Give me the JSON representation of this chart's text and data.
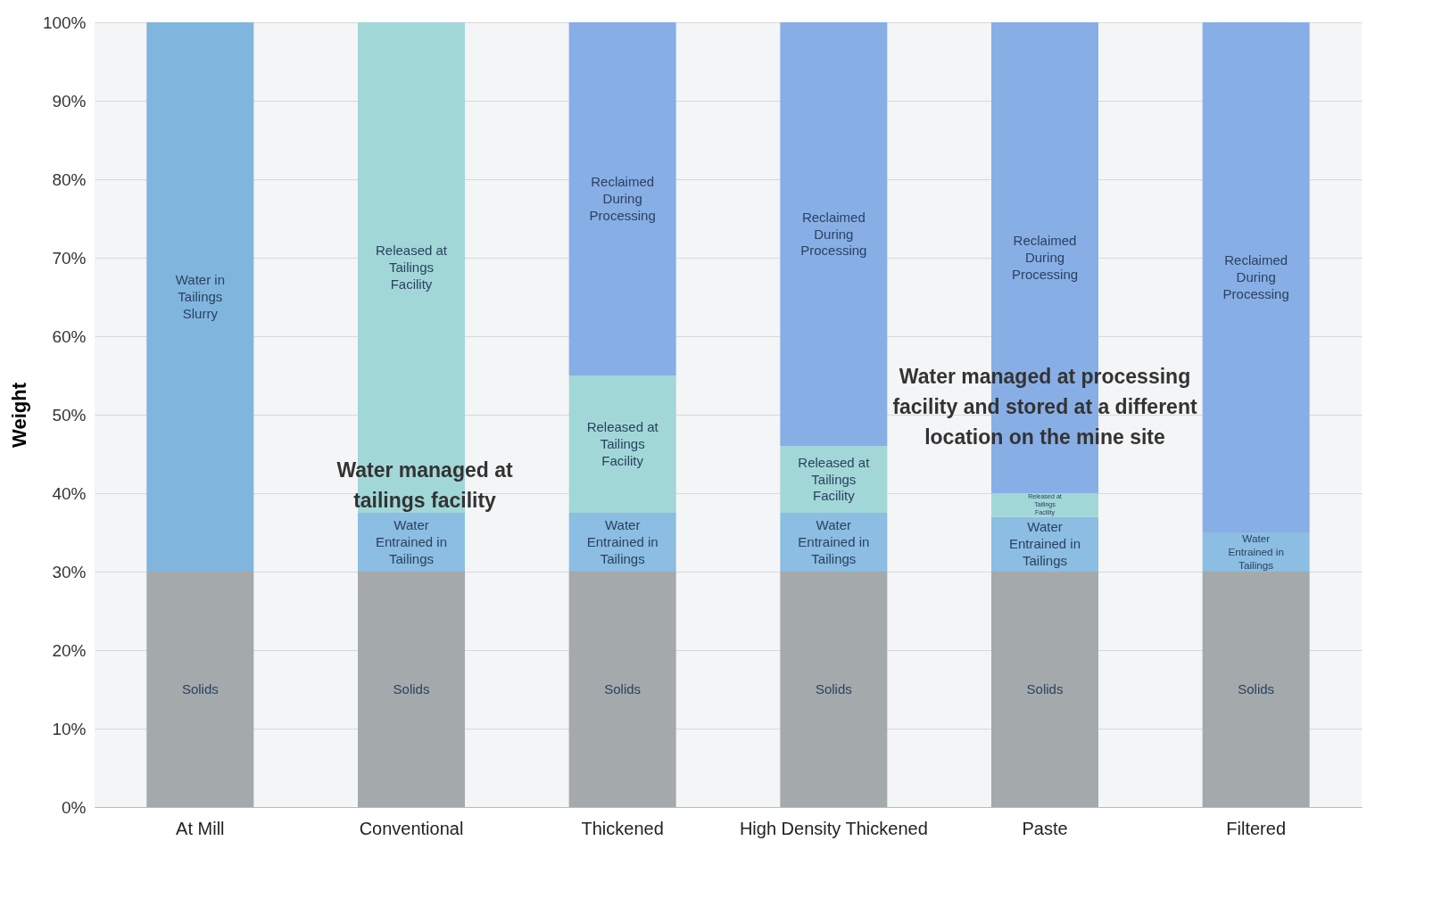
{
  "chart_data": {
    "type": "bar",
    "stacked": true,
    "ylabel": "Weight",
    "categories": [
      "At Mill",
      "Conventional",
      "Thickened",
      "High Density Thickened",
      "Paste",
      "Filtered"
    ],
    "series": [
      {
        "name": "Solids",
        "color": "#a4a9ab",
        "values": [
          30,
          30,
          30,
          30,
          30,
          30
        ]
      },
      {
        "name": "Water Entrained in Tailings",
        "color": "#8cbde2",
        "values": [
          null,
          7.5,
          7.5,
          7.5,
          7,
          5
        ]
      },
      {
        "name": "Released at Tailings Facility",
        "color": "#a2d7d8",
        "values": [
          null,
          62.5,
          17.5,
          8.5,
          3,
          null
        ]
      },
      {
        "name": "Reclaimed During Processing",
        "color": "#88aee6",
        "values": [
          null,
          null,
          45,
          54,
          60,
          65
        ]
      },
      {
        "name": "Water in Tailings Slurry",
        "color": "#80b5de",
        "values": [
          70,
          null,
          null,
          null,
          null,
          null
        ]
      }
    ],
    "ylim": [
      0,
      100
    ],
    "yticks": [
      {
        "value": 0,
        "label": "0%"
      },
      {
        "value": 10,
        "label": "10%"
      },
      {
        "value": 20,
        "label": "20%"
      },
      {
        "value": 30,
        "label": "30%"
      },
      {
        "value": 40,
        "label": "40%"
      },
      {
        "value": 50,
        "label": "50%"
      },
      {
        "value": 60,
        "label": "60%"
      },
      {
        "value": 70,
        "label": "70%"
      },
      {
        "value": 80,
        "label": "80%"
      },
      {
        "value": 90,
        "label": "90%"
      },
      {
        "value": 100,
        "label": "100%"
      }
    ],
    "grid": "y",
    "legend": false,
    "annotations": [
      "Water managed at tailings facility",
      "Water managed at processing facility and stored at a different location on the mine site"
    ]
  }
}
